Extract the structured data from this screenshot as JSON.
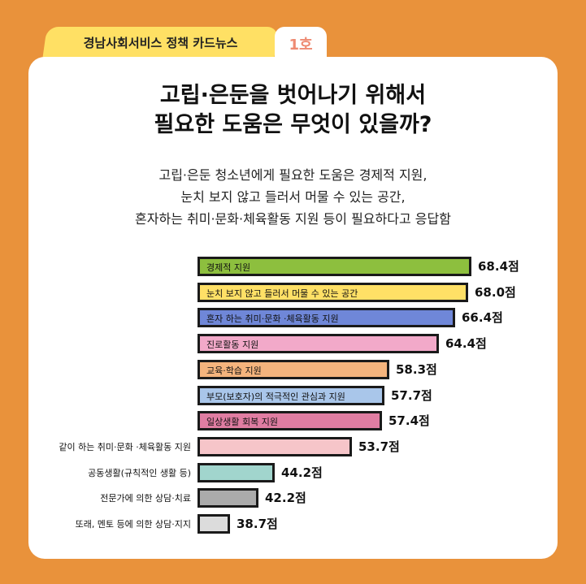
{
  "header": {
    "series": "경남사회서비스 정책 카드뉴스",
    "issue": "1호"
  },
  "title_lines": [
    "고립·은둔을 벗어나기 위해서",
    "필요한 도움은 무엇이 있을까?"
  ],
  "subtitle_lines": [
    "고립·은둔 청소년에게 필요한 도움은 경제적 지원,",
    "눈치 보지 않고 들러서 머물 수 있는 공간,",
    "혼자하는 취미·문화·체육활동 지원 등이 필요하다고 응답함"
  ],
  "chart_data": {
    "type": "bar",
    "orientation": "horizontal",
    "unit": "점",
    "xlim": [
      34.7,
      70
    ],
    "categories": [
      "경제적 지원",
      "눈치 보지 않고 들러서 머물 수 있는 공간",
      "혼자 하는 취미·문화 ·체육활동 지원",
      "진로활동 지원",
      "교육·학습 지원",
      "부모(보호자)의 적극적인 관심과 지원",
      "일상생활 회복 지원",
      "같이 하는 취미·문화 ·체육활동 지원",
      "공동생활(규칙적인 생활 등)",
      "전문가에 의한 상담·치료",
      "또래, 멘토 등에 의한 상담·지지"
    ],
    "values": [
      68.4,
      68.0,
      66.4,
      64.4,
      58.3,
      57.7,
      57.4,
      53.7,
      44.2,
      42.2,
      38.7
    ],
    "value_labels": [
      "68.4점",
      "68.0점",
      "66.4점",
      "64.4점",
      "58.3점",
      "57.7점",
      "57.4점",
      "53.7점",
      "44.2점",
      "42.2점",
      "38.7점"
    ],
    "colors": [
      "#8dbf3e",
      "#ffe066",
      "#6f87d8",
      "#f2a9c9",
      "#f4b47d",
      "#a9c6ea",
      "#e07da2",
      "#f6c5c9",
      "#a1d5cd",
      "#ababab",
      "#dcdcdc"
    ],
    "label_inside_count": 7
  }
}
